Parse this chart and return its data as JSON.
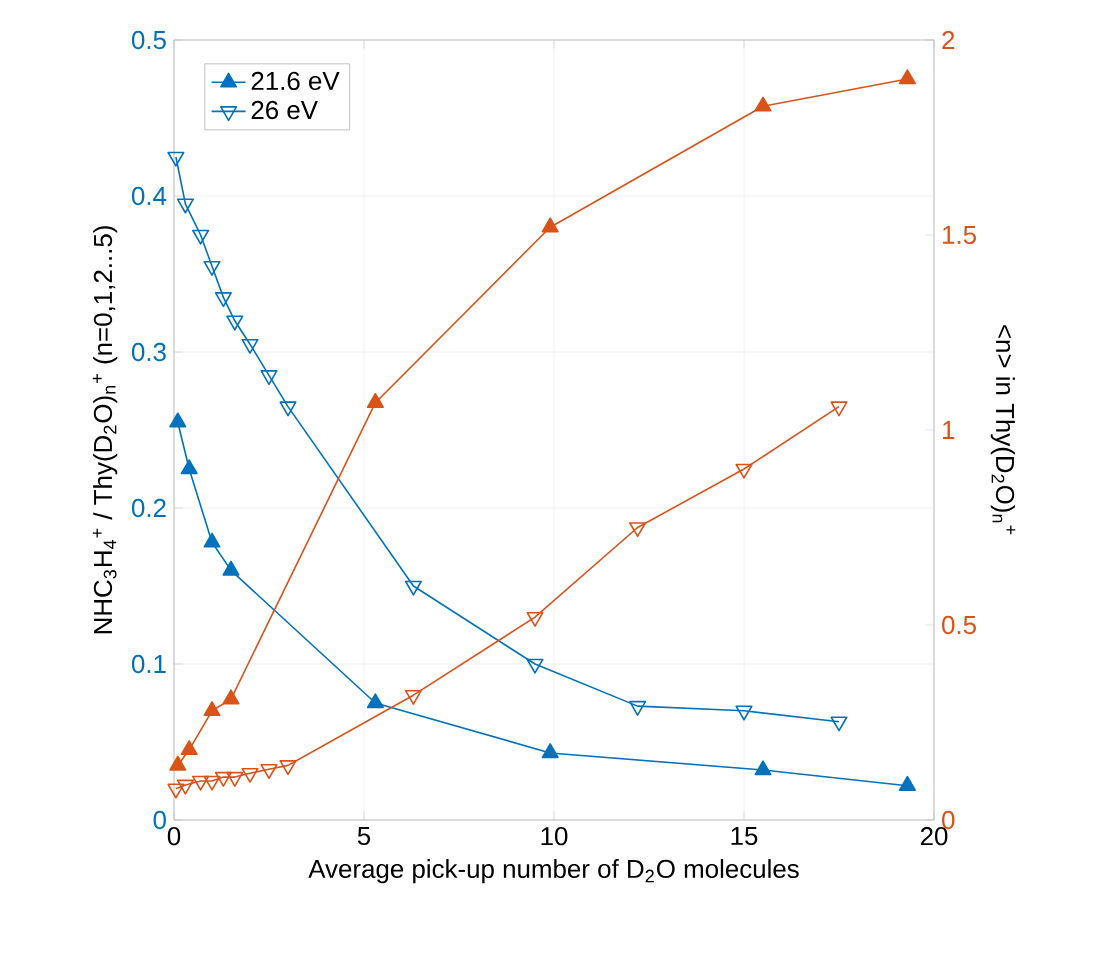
{
  "chart_data": {
    "type": "line",
    "xlabel": "Average pick-up number of D$_{2}$O molecules",
    "ylabel": "NHC$_{3}$H$_{4}$$^{+}$ / Thy(D$_{2}$O)$_{n}$$^{+}$ (n=0,1,2...5)",
    "y2label": "<n> in Thy(D$_{2}$O)$_{n}$$^{+}$",
    "xlim": [
      0,
      20
    ],
    "xticks": [
      0,
      5,
      10,
      15,
      20
    ],
    "ylim": [
      0,
      0.5
    ],
    "yticks": [
      0,
      0.1,
      0.2,
      0.3,
      0.4,
      0.5
    ],
    "y2lim": [
      0,
      2
    ],
    "y2ticks": [
      0,
      0.5,
      1,
      1.5,
      2
    ],
    "grid": true,
    "legend": "top left",
    "series": [
      {
        "name": "21.6 eV",
        "color": "#0072bd",
        "marker": "triangle",
        "x": [
          0.1,
          0.4,
          1.0,
          1.5,
          5.3,
          9.9,
          15.5,
          19.3
        ],
        "values": [
          0.255,
          0.225,
          0.178,
          0.16,
          0.075,
          0.043,
          0.032,
          0.022
        ]
      },
      {
        "name": "26 eV",
        "color": "#0072bd",
        "marker": "triangle-down",
        "x": [
          0.05,
          0.3,
          0.7,
          1.0,
          1.3,
          1.6,
          2.0,
          2.5,
          3.0,
          6.3,
          9.5,
          12.2,
          15.0,
          17.5
        ],
        "values": [
          0.425,
          0.395,
          0.375,
          0.355,
          0.335,
          0.32,
          0.305,
          0.285,
          0.265,
          0.15,
          0.1,
          0.073,
          0.07,
          0.063
        ]
      },
      {
        "color": "#d95319",
        "marker": "triangle",
        "axis": "y2",
        "x": [
          0.1,
          0.4,
          1.0,
          1.5,
          5.3,
          9.9,
          15.5,
          19.3
        ],
        "values": [
          0.14,
          0.18,
          0.28,
          0.31,
          1.07,
          1.52,
          1.83,
          1.9
        ]
      },
      {
        "color": "#d95319",
        "marker": "triangle-down",
        "axis": "y2",
        "x": [
          0.05,
          0.3,
          0.7,
          1.0,
          1.3,
          1.6,
          2.0,
          2.5,
          3.0,
          6.3,
          9.5,
          12.2,
          15.0,
          17.5
        ],
        "values": [
          0.08,
          0.09,
          0.1,
          0.1,
          0.11,
          0.11,
          0.12,
          0.13,
          0.14,
          0.32,
          0.52,
          0.75,
          0.9,
          1.06
        ]
      }
    ]
  }
}
